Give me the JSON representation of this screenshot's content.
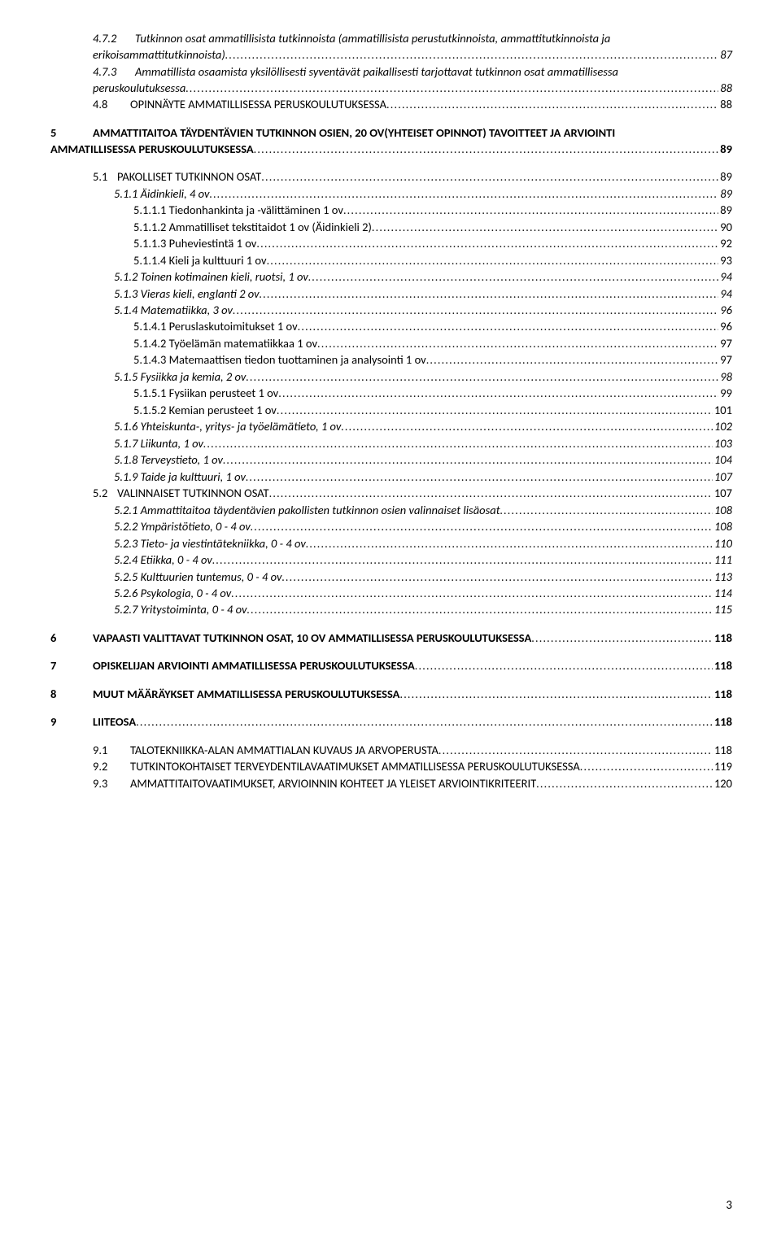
{
  "leader": "....................................................................................................................................................................................................................................................",
  "entries": [
    {
      "num": "4.7.2",
      "text": "Tutkinnon osat ammatillisista tutkinnoista (ammatillisista perustutkinnoista, ammattitutkinnoista ja",
      "wrap": "erikoisammattitutkinnoista)",
      "page": "87",
      "indent": 52,
      "wrapIndent": 52,
      "italic": true,
      "hasNum": true
    },
    {
      "num": "4.7.3",
      "text": "Ammatillista osaamista yksilöllisesti syventävät paikallisesti tarjottavat tutkinnon osat ammatillisessa",
      "wrap": "peruskoulutuksessa",
      "page": "88",
      "indent": 52,
      "wrapIndent": 52,
      "italic": true,
      "hasNum": true
    },
    {
      "num": "4.8",
      "text": "OPINNÄYTE AMMATILLISESSA PERUSKOULUTUKSESSA",
      "page": "88",
      "indent": 52,
      "smallcaps": true,
      "hasNum": true,
      "numWidth": 46
    },
    {
      "spacer": true
    },
    {
      "num": "5",
      "text": "AMMATTITAITOA TÄYDENTÄVIEN TUTKINNON OSIEN, 20 OV(YHTEISET OPINNOT) TAVOITTEET JA ARVIOINTI",
      "wrap": "AMMATILLISESSA PERUSKOULUTUKSESSA",
      "page": "89",
      "indent": 0,
      "wrapIndent": 0,
      "bold": true,
      "hasNum": true,
      "numBold": true
    },
    {
      "spacer": true
    },
    {
      "num": "5.1",
      "text": "PAKOLLISET TUTKINNON OSAT",
      "page": "89",
      "indent": 52,
      "smallcaps": true,
      "numNormal": true,
      "hasNum": true,
      "numWidth": 30
    },
    {
      "num": "",
      "text": "5.1.1 Äidinkieli, 4 ov",
      "page": "89",
      "indent": 78,
      "italic": true
    },
    {
      "num": "",
      "text": "5.1.1.1 Tiedonhankinta ja -välittäminen 1 ov",
      "page": "89",
      "indent": 102
    },
    {
      "num": "",
      "text": "5.1.1.2 Ammatilliset tekstitaidot 1 ov (Äidinkieli 2)",
      "page": "90",
      "indent": 102
    },
    {
      "num": "",
      "text": "5.1.1.3 Puheviestintä 1 ov",
      "page": "92",
      "indent": 102
    },
    {
      "num": "",
      "text": "5.1.1.4 Kieli ja kulttuuri 1 ov",
      "page": "93",
      "indent": 102
    },
    {
      "num": "",
      "text": "5.1.2 Toinen kotimainen kieli, ruotsi, 1 ov",
      "page": "94",
      "indent": 78,
      "italic": true
    },
    {
      "num": "",
      "text": "5.1.3 Vieras kieli, englanti 2 ov",
      "page": "94",
      "indent": 78,
      "italic": true
    },
    {
      "num": "",
      "text": "5.1.4 Matematiikka, 3 ov",
      "page": "96",
      "indent": 78,
      "italic": true
    },
    {
      "num": "",
      "text": "5.1.4.1 Peruslaskutoimitukset 1 ov",
      "page": "96",
      "indent": 102
    },
    {
      "num": "",
      "text": "5.1.4.2 Työelämän matematiikkaa 1 ov",
      "page": "97",
      "indent": 102
    },
    {
      "num": "",
      "text": "5.1.4.3 Matemaattisen tiedon tuottaminen ja analysointi 1 ov",
      "page": "97",
      "indent": 102
    },
    {
      "num": "",
      "text": "5.1.5 Fysiikka ja kemia, 2 ov",
      "page": "98",
      "indent": 78,
      "italic": true
    },
    {
      "num": "",
      "text": "5.1.5.1 Fysiikan perusteet 1 ov",
      "page": "99",
      "indent": 102
    },
    {
      "num": "",
      "text": "5.1.5.2 Kemian perusteet 1 ov",
      "page": "101",
      "indent": 102
    },
    {
      "num": "",
      "text": "5.1.6 Yhteiskunta-, yritys- ja työelämätieto, 1 ov",
      "page": "102",
      "indent": 78,
      "italic": true
    },
    {
      "num": "",
      "text": "5.1.7 Liikunta, 1 ov",
      "page": "103",
      "indent": 78,
      "italic": true
    },
    {
      "num": "",
      "text": "5.1.8 Terveystieto, 1 ov",
      "page": "104",
      "indent": 78,
      "italic": true
    },
    {
      "num": "",
      "text": "5.1.9 Taide ja kulttuuri, 1 ov",
      "page": "107",
      "indent": 78,
      "italic": true
    },
    {
      "num": "5.2",
      "text": "VALINNAISET TUTKINNON OSAT",
      "page": "107",
      "indent": 52,
      "smallcaps": true,
      "numNormal": true,
      "hasNum": true,
      "numWidth": 30
    },
    {
      "num": "",
      "text": "5.2.1 Ammattitaitoa täydentävien pakollisten tutkinnon osien valinnaiset lisäosat",
      "page": "108",
      "indent": 78,
      "italic": true
    },
    {
      "num": "",
      "text": "5.2.2 Ympäristötieto, 0 - 4 ov",
      "page": "108",
      "indent": 78,
      "italic": true
    },
    {
      "num": "",
      "text": "5.2.3 Tieto- ja viestintätekniikka, 0 - 4 ov",
      "page": "110",
      "indent": 78,
      "italic": true
    },
    {
      "num": "",
      "text": "5.2.4 Etiikka, 0 - 4 ov",
      "page": "111",
      "indent": 78,
      "italic": true
    },
    {
      "num": "",
      "text": "5.2.5 Kulttuurien tuntemus, 0 - 4 ov",
      "page": "113",
      "indent": 78,
      "italic": true
    },
    {
      "num": "",
      "text": "5.2.6 Psykologia, 0 - 4 ov",
      "page": "114",
      "indent": 78,
      "italic": true
    },
    {
      "num": "",
      "text": "5.2.7 Yritystoiminta, 0 - 4 ov",
      "page": "115",
      "indent": 78,
      "italic": true
    },
    {
      "spacer": true
    },
    {
      "num": "6",
      "text": "VAPAASTI VALITTAVAT TUTKINNON OSAT, 10 OV AMMATILLISESSA PERUSKOULUTUKSESSA",
      "page": "118",
      "indent": 0,
      "bold": true,
      "hasNum": true,
      "numBold": true
    },
    {
      "spacer": true
    },
    {
      "num": "7",
      "text": "OPISKELIJAN ARVIOINTI AMMATILLISESSA PERUSKOULUTUKSESSA",
      "page": "118",
      "indent": 0,
      "bold": true,
      "hasNum": true,
      "numBold": true
    },
    {
      "spacer": true
    },
    {
      "num": "8",
      "text": "MUUT MÄÄRÄYKSET AMMATILLISESSA PERUSKOULUTUKSESSA",
      "page": "118",
      "indent": 0,
      "bold": true,
      "hasNum": true,
      "numBold": true
    },
    {
      "spacer": true
    },
    {
      "num": "9",
      "text": "LIITEOSA",
      "page": "118",
      "indent": 0,
      "bold": true,
      "hasNum": true,
      "numBold": true
    },
    {
      "spacer": true
    },
    {
      "num": "9.1",
      "text": "TALOTEKNIIKKA-ALAN AMMATTIALAN KUVAUS JA ARVOPERUSTA",
      "page": "118",
      "indent": 52,
      "smallcaps": true,
      "hasNum": true,
      "numWidth": 46
    },
    {
      "num": "9.2",
      "text": "TUTKINTOKOHTAISET TERVEYDENTILAVAATIMUKSET AMMATILLISESSA PERUSKOULUTUKSESSA",
      "page": "119",
      "indent": 52,
      "smallcaps": true,
      "hasNum": true,
      "numWidth": 46
    },
    {
      "num": "9.3",
      "text": "AMMATTITAITOVAATIMUKSET, ARVIOINNIN KOHTEET JA YLEISET ARVIOINTIKRITEERIT",
      "page": "120",
      "indent": 52,
      "smallcaps": true,
      "hasNum": true,
      "numWidth": 46
    }
  ],
  "pageNumber": "3"
}
